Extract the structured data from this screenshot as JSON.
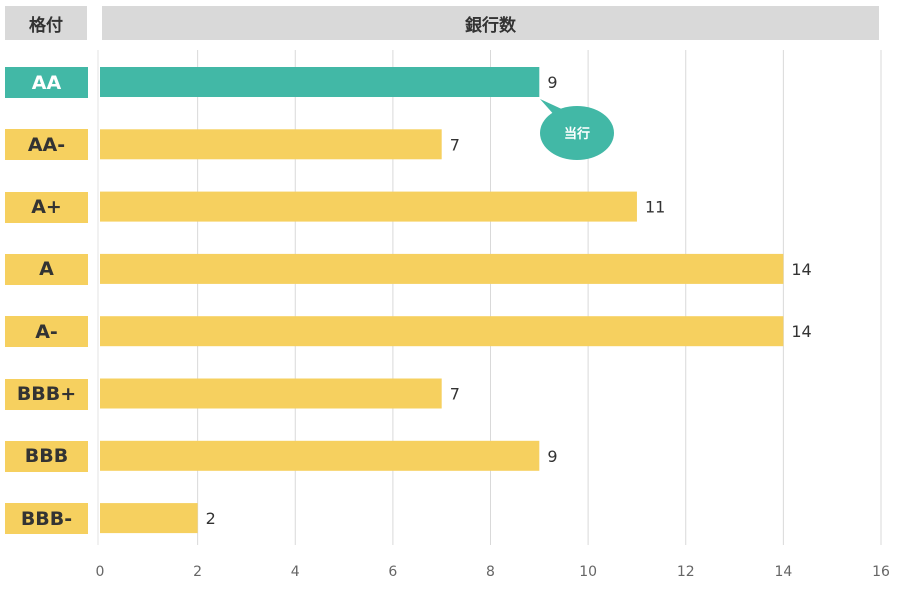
{
  "headers": {
    "rating": "格付",
    "bank_count": "銀行数"
  },
  "chart_data": {
    "type": "bar",
    "orientation": "horizontal",
    "title": "",
    "xlabel": "",
    "ylabel": "",
    "categories": [
      "AA",
      "AA-",
      "A+",
      "A",
      "A-",
      "BBB+",
      "BBB",
      "BBB-"
    ],
    "values": [
      9,
      7,
      11,
      14,
      14,
      7,
      9,
      2
    ],
    "xlim": [
      0,
      16
    ],
    "xticks": [
      0,
      2,
      4,
      6,
      8,
      10,
      12,
      14,
      16
    ],
    "grid": true,
    "highlight_category": "AA",
    "highlight_note": "当行"
  },
  "colors": {
    "bar": "#f6d05f",
    "highlight": "#42b8a6",
    "header_bg": "#d9d9d9",
    "grid": "#d9d9d9"
  }
}
